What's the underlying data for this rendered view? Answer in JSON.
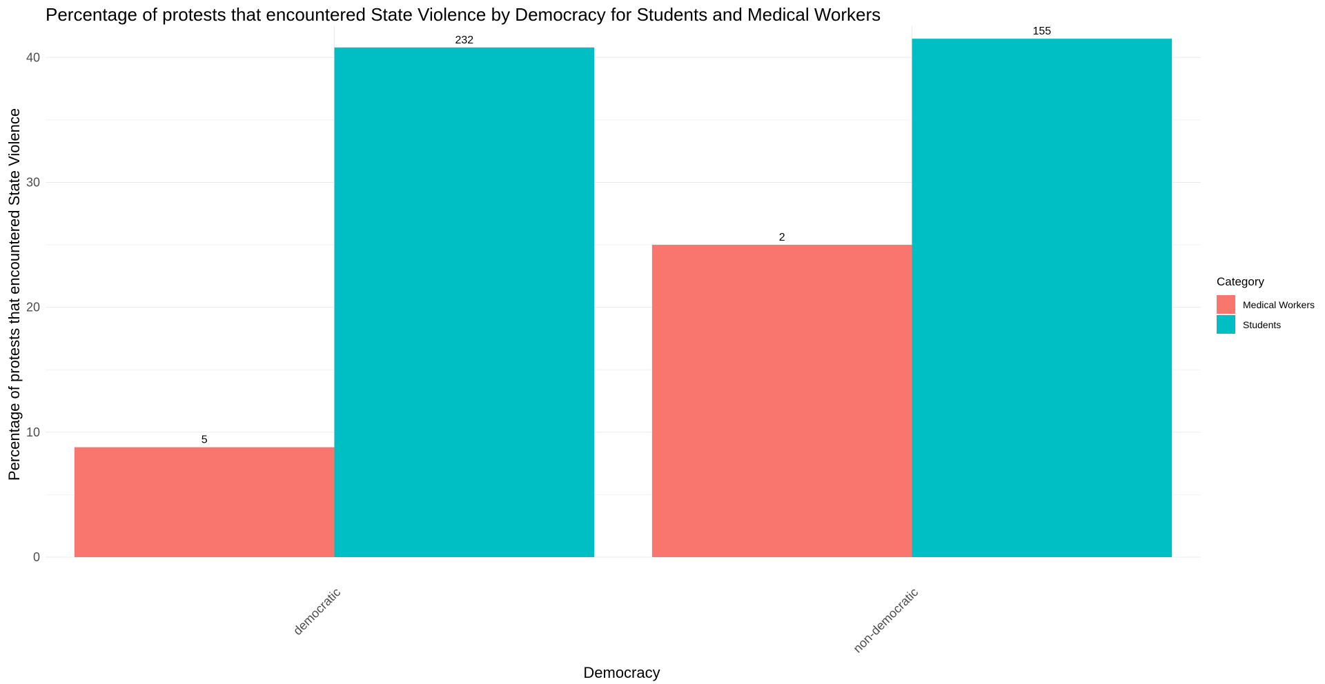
{
  "chart_data": {
    "type": "bar",
    "title": "Percentage of protests that encountered State Violence by Democracy for Students and Medical Workers",
    "xlabel": "Democracy",
    "ylabel": "Percentage of protests that encountered State Violence",
    "categories": [
      "democratic",
      "non-democratic"
    ],
    "series": [
      {
        "name": "Medical Workers",
        "color": "#F8766D",
        "values": [
          8.8,
          25.0
        ],
        "labels": [
          "5",
          "2"
        ]
      },
      {
        "name": "Students",
        "color": "#00BFC4",
        "values": [
          40.8,
          41.5
        ],
        "labels": [
          "232",
          "155"
        ]
      }
    ],
    "ylim": [
      0,
      42.5
    ],
    "yticks": [
      0,
      10,
      20,
      30,
      40
    ],
    "grid": true,
    "legend": {
      "title": "Category",
      "position": "right"
    }
  }
}
